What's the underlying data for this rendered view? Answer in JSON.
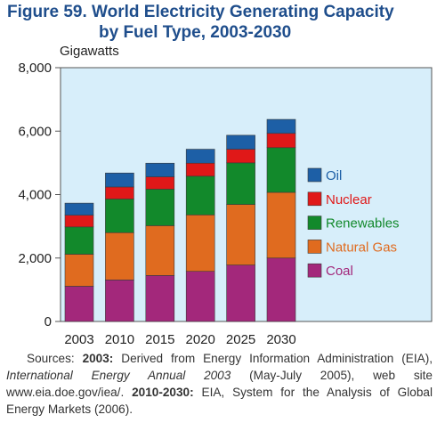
{
  "figure": {
    "title_line1": "Figure 59.  World Electricity Generating Capacity",
    "title_line2": "by Fuel Type, 2003-2030"
  },
  "chart_data": {
    "type": "bar",
    "stacked": true,
    "title": "Figure 59. World Electricity Generating Capacity by Fuel Type, 2003-2030",
    "ylabel": "Gigawatts",
    "ylim": [
      0,
      8000
    ],
    "yticks": [
      "0",
      "2,000",
      "4,000",
      "6,000",
      "8,000"
    ],
    "ytick_values": [
      0,
      2000,
      4000,
      6000,
      8000
    ],
    "categories": [
      "2003",
      "2010",
      "2015",
      "2020",
      "2025",
      "2030"
    ],
    "series": [
      {
        "name": "Coal",
        "color": "#a3287b",
        "values": [
          1110,
          1310,
          1450,
          1580,
          1780,
          2000
        ]
      },
      {
        "name": "Natural Gas",
        "color": "#e06b1f",
        "values": [
          1010,
          1490,
          1570,
          1780,
          1910,
          2070
        ]
      },
      {
        "name": "Renewables",
        "color": "#12892b",
        "values": [
          860,
          1060,
          1150,
          1220,
          1310,
          1410
        ]
      },
      {
        "name": "Nuclear",
        "color": "#e01818",
        "values": [
          370,
          380,
          390,
          410,
          430,
          450
        ]
      },
      {
        "name": "Oil",
        "color": "#1d5fa6",
        "values": [
          380,
          440,
          430,
          440,
          440,
          440
        ]
      }
    ],
    "legend_order": [
      "Oil",
      "Nuclear",
      "Renewables",
      "Natural Gas",
      "Coal"
    ],
    "legend_position": "right",
    "grid": false,
    "plot_background": "#d7eefa"
  },
  "source": {
    "prefix": "Sources: ",
    "y1": "2003:",
    "t1": " Derived from Energy Information Administration (EIA), ",
    "pub": "International Energy Annual 2003",
    "t2": " (May-July 2005), web site www.eia.doe.gov/iea/. ",
    "y2": "2010-2030:",
    "t3": " EIA, System for the Analysis of Global Energy Markets (2006)."
  }
}
